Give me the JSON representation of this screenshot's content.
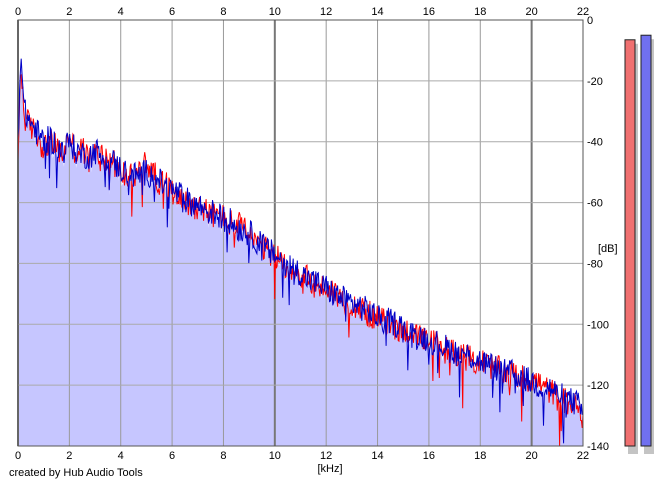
{
  "credit_text": "created by Hub Audio Tools",
  "chart_data": {
    "type": "line",
    "title": "",
    "xlabel": "[kHz]",
    "ylabel": "[dB]",
    "xlim": [
      0,
      22
    ],
    "ylim": [
      -140,
      0
    ],
    "x_ticks": [
      "0",
      "2",
      "4",
      "6",
      "8",
      "10",
      "12",
      "14",
      "16",
      "18",
      "20",
      "22"
    ],
    "y_ticks": [
      "0",
      "-20",
      "-40",
      "-60",
      "-80",
      "-100",
      "-120",
      "-140"
    ],
    "grid": true,
    "legend": "none",
    "series": [
      {
        "color": "#ff0000",
        "x": [
          0,
          0.1,
          0.25,
          0.5,
          0.75,
          1,
          1.25,
          1.5,
          1.75,
          2,
          2.25,
          2.5,
          2.75,
          3,
          3.25,
          3.5,
          3.75,
          4,
          4.25,
          4.5,
          4.75,
          5,
          5.25,
          5.5,
          5.75,
          6,
          6.25,
          6.5,
          6.75,
          7,
          7.25,
          7.5,
          7.75,
          8,
          8.25,
          8.5,
          8.75,
          9,
          9.25,
          9.5,
          9.75,
          10,
          10.25,
          10.5,
          10.75,
          11,
          11.25,
          11.5,
          11.75,
          12,
          12.25,
          12.5,
          12.75,
          13,
          13.25,
          13.5,
          13.75,
          14,
          14.25,
          14.5,
          14.75,
          15,
          15.25,
          15.5,
          15.75,
          16,
          16.25,
          16.5,
          16.75,
          17,
          17.25,
          17.5,
          17.75,
          18,
          18.25,
          18.5,
          18.75,
          19,
          19.25,
          19.5,
          19.75,
          20,
          20.25,
          20.5,
          20.75,
          21,
          21.25,
          21.5,
          21.75,
          22
        ],
        "values": [
          -50,
          -14,
          -32,
          -35,
          -38,
          -42,
          -40,
          -42,
          -45,
          -37,
          -44,
          -42,
          -46,
          -44,
          -44,
          -45,
          -47,
          -50,
          -51,
          -52,
          -49,
          -47,
          -50,
          -53,
          -54,
          -57,
          -56,
          -60,
          -61,
          -61,
          -62,
          -64,
          -64,
          -65,
          -67,
          -67,
          -68,
          -71,
          -73,
          -75,
          -76,
          -78,
          -79,
          -81,
          -83,
          -84,
          -85,
          -87,
          -88,
          -88,
          -89,
          -91,
          -93,
          -93,
          -94,
          -96,
          -97,
          -98,
          -99,
          -100,
          -101,
          -102,
          -102,
          -104,
          -105,
          -106,
          -106,
          -107,
          -108,
          -109,
          -110,
          -111,
          -112,
          -112,
          -113,
          -114,
          -115,
          -116,
          -116,
          -117,
          -118,
          -118,
          -119,
          -121,
          -122,
          -124,
          -125,
          -126,
          -127,
          -131
        ]
      },
      {
        "color": "#0000c8",
        "x": [
          0,
          0.1,
          0.25,
          0.5,
          0.75,
          1,
          1.25,
          1.5,
          1.75,
          2,
          2.25,
          2.5,
          2.75,
          3,
          3.25,
          3.5,
          3.75,
          4,
          4.25,
          4.5,
          4.75,
          5,
          5.25,
          5.5,
          5.75,
          6,
          6.25,
          6.5,
          6.75,
          7,
          7.25,
          7.5,
          7.75,
          8,
          8.25,
          8.5,
          8.75,
          9,
          9.25,
          9.5,
          9.75,
          10,
          10.25,
          10.5,
          10.75,
          11,
          11.25,
          11.5,
          11.75,
          12,
          12.25,
          12.5,
          12.75,
          13,
          13.25,
          13.5,
          13.75,
          14,
          14.25,
          14.5,
          14.75,
          15,
          15.25,
          15.5,
          15.75,
          16,
          16.25,
          16.5,
          16.75,
          17,
          17.25,
          17.5,
          17.75,
          18,
          18.25,
          18.5,
          18.75,
          19,
          19.25,
          19.5,
          19.75,
          20,
          20.25,
          20.5,
          20.75,
          21,
          21.25,
          21.5,
          21.75,
          22
        ],
        "values": [
          -40,
          -11,
          -30,
          -34,
          -37,
          -40,
          -39,
          -41,
          -43,
          -40,
          -43,
          -44,
          -45,
          -43,
          -44,
          -46,
          -47,
          -49,
          -50,
          -51,
          -51,
          -50,
          -51,
          -53,
          -55,
          -56,
          -57,
          -59,
          -60,
          -61,
          -62,
          -63,
          -64,
          -65,
          -66,
          -68,
          -69,
          -70,
          -72,
          -74,
          -76,
          -77,
          -79,
          -80,
          -82,
          -83,
          -85,
          -86,
          -87,
          -88,
          -90,
          -91,
          -92,
          -93,
          -94,
          -95,
          -96,
          -98,
          -99,
          -99,
          -100,
          -101,
          -103,
          -104,
          -104,
          -105,
          -106,
          -107,
          -108,
          -109,
          -110,
          -110,
          -111,
          -112,
          -113,
          -114,
          -115,
          -116,
          -116,
          -117,
          -118,
          -119,
          -120,
          -121,
          -121,
          -123,
          -124,
          -125,
          -126,
          -129
        ]
      }
    ],
    "area_fill": {
      "color": "#c6c6ff"
    },
    "level_meters": [
      {
        "color": "#f07070",
        "value_db": -6.5
      },
      {
        "color": "#7070f0",
        "value_db": -5
      }
    ]
  }
}
